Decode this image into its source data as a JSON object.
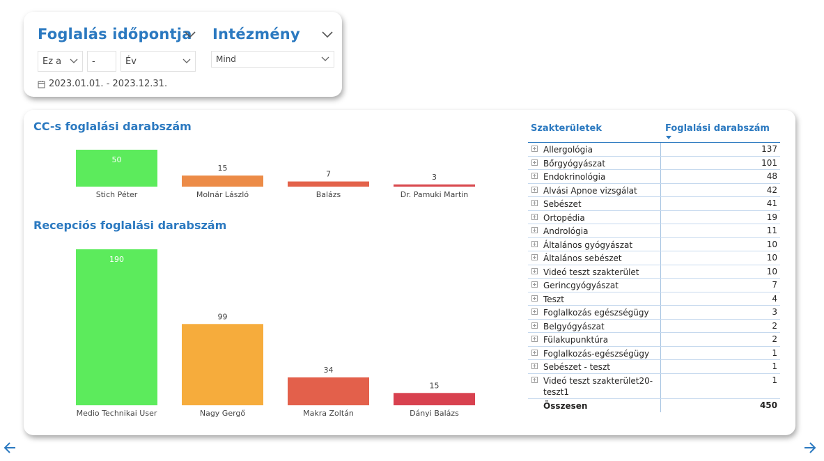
{
  "filters": {
    "date_slicer": {
      "title": "Foglalás időpontja",
      "period_mode": "Ez a",
      "period_count": "-",
      "period_unit": "Év",
      "range": "2023.01.01. - 2023.12.31."
    },
    "institution_slicer": {
      "title": "Intézmény",
      "selected": "Mind"
    }
  },
  "charts": {
    "cc": {
      "title": "CC-s foglalási darabszám",
      "bars": [
        {
          "name": "Stich Péter",
          "value": 50,
          "color": "#5ceb5c"
        },
        {
          "name": "Molnár László",
          "value": 15,
          "color": "#ec8b47"
        },
        {
          "name": "Balázs",
          "value": 7,
          "color": "#e3624a"
        },
        {
          "name": "Dr. Pamuki Martin",
          "value": 3,
          "color": "#d94a4f"
        }
      ]
    },
    "reception": {
      "title": "Recepciós foglalási darabszám",
      "bars": [
        {
          "name": "Medio Technikai User",
          "value": 190,
          "color": "#5ceb5c"
        },
        {
          "name": "Nagy Gergő",
          "value": 99,
          "color": "#f6ac3c"
        },
        {
          "name": "Makra Zoltán",
          "value": 34,
          "color": "#e3604b"
        },
        {
          "name": "Dányi Balázs",
          "value": 15,
          "color": "#d8414f"
        }
      ]
    }
  },
  "table": {
    "col1": "Szakterületek",
    "col2": "Foglalási darabszám",
    "rows": [
      {
        "name": "Allergológia",
        "value": "137"
      },
      {
        "name": "Bőrgyógyászat",
        "value": "101"
      },
      {
        "name": "Endokrinológia",
        "value": "48"
      },
      {
        "name": "Alvási Apnoe vizsgálat",
        "value": "42"
      },
      {
        "name": "Sebészet",
        "value": "41"
      },
      {
        "name": "Ortopédia",
        "value": "19"
      },
      {
        "name": "Andrológia",
        "value": "11"
      },
      {
        "name": "Általános gyógyászat",
        "value": "10"
      },
      {
        "name": "Általános sebészet",
        "value": "10"
      },
      {
        "name": "Videó teszt szakterület",
        "value": "10"
      },
      {
        "name": "Gerincgyógyászat",
        "value": "7"
      },
      {
        "name": "Teszt",
        "value": "4"
      },
      {
        "name": "Foglalkozás egészségügy",
        "value": "3"
      },
      {
        "name": "Belgyógyászat",
        "value": "2"
      },
      {
        "name": "Fülakupunktúra",
        "value": "2"
      },
      {
        "name": "Foglalkozás-egészségügy",
        "value": "1"
      },
      {
        "name": "Sebészet - teszt",
        "value": "1"
      },
      {
        "name": "Videó teszt szakterület20-teszt1",
        "value": "1"
      }
    ],
    "total_label": "Összesen",
    "total_value": "450"
  },
  "icons": {
    "calendar": "calendar-icon",
    "chevron": "chevron-down-icon",
    "nav_prev": "arrow-left-icon",
    "nav_next": "arrow-right-icon"
  },
  "chart_data": [
    {
      "type": "bar",
      "title": "CC-s foglalási darabszám",
      "categories": [
        "Stich Péter",
        "Molnár László",
        "Balázs",
        "Dr. Pamuki Martin"
      ],
      "values": [
        50,
        15,
        7,
        3
      ],
      "xlabel": "",
      "ylabel": "",
      "ylim": [
        0,
        50
      ],
      "grid": false
    },
    {
      "type": "bar",
      "title": "Recepciós foglalási darabszám",
      "categories": [
        "Medio Technikai User",
        "Nagy Gergő",
        "Makra Zoltán",
        "Dányi Balázs"
      ],
      "values": [
        190,
        99,
        34,
        15
      ],
      "xlabel": "",
      "ylabel": "",
      "ylim": [
        0,
        190
      ],
      "grid": false
    }
  ]
}
